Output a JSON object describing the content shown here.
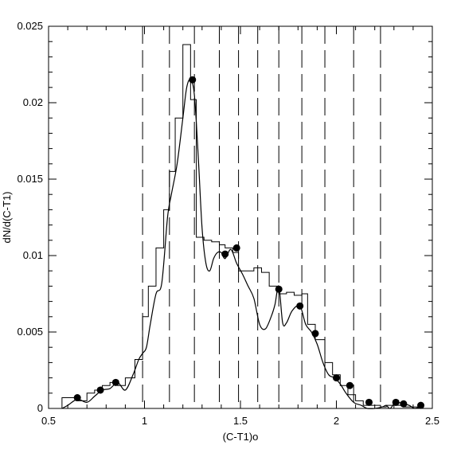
{
  "chart_data": {
    "type": "line",
    "title": "",
    "xlabel": "(C-T1)o",
    "ylabel": "dN/d(C-T1)",
    "xlim": [
      0.5,
      2.5
    ],
    "ylim": [
      0,
      0.025
    ],
    "x_ticks": [
      0.5,
      1,
      1.5,
      2,
      2.5
    ],
    "x_tick_labels": [
      "0.5",
      "1",
      "1.5",
      "2",
      "2.5"
    ],
    "y_ticks": [
      0,
      0.005,
      0.01,
      0.015,
      0.02,
      0.025
    ],
    "y_tick_labels": [
      "0",
      "0.005",
      "0.01",
      "0.015",
      "0.02",
      "0.025"
    ],
    "grid": false,
    "vertical_dashed_lines": [
      0.99,
      1.13,
      1.26,
      1.39,
      1.49,
      1.59,
      1.7,
      1.82,
      1.94,
      2.09,
      2.23
    ],
    "series": [
      {
        "style": "step-histogram",
        "edges": [
          0.57,
          0.65,
          0.7,
          0.74,
          0.78,
          0.82,
          0.86,
          0.9,
          0.95,
          0.99,
          1.02,
          1.06,
          1.1,
          1.13,
          1.16,
          1.2,
          1.24,
          1.27,
          1.31,
          1.35,
          1.39,
          1.42,
          1.46,
          1.49,
          1.53,
          1.57,
          1.61,
          1.65,
          1.7,
          1.74,
          1.78,
          1.82,
          1.85,
          1.89,
          1.94,
          1.98,
          2.02,
          2.06,
          2.1,
          2.14,
          2.18,
          2.23,
          2.26,
          2.31,
          2.35,
          2.4,
          2.45
        ],
        "values": [
          0.0007,
          0.0005,
          0.001,
          0.0012,
          0.0015,
          0.0017,
          0.0015,
          0.002,
          0.0032,
          0.006,
          0.008,
          0.0105,
          0.013,
          0.0155,
          0.019,
          0.0238,
          0.0202,
          0.0112,
          0.011,
          0.0109,
          0.0107,
          0.0105,
          0.0102,
          0.009,
          0.009,
          0.0092,
          0.0089,
          0.008,
          0.0075,
          0.0076,
          0.0074,
          0.0075,
          0.0055,
          0.0045,
          0.003,
          0.0022,
          0.0015,
          0.0009,
          0.0005,
          0.0002,
          0.0002,
          0.0001,
          0.0002,
          0.0002,
          0.0001,
          0.0001
        ]
      },
      {
        "style": "smooth-line",
        "x": [
          0.57,
          0.6,
          0.65,
          0.7,
          0.74,
          0.78,
          0.82,
          0.86,
          0.9,
          0.94,
          0.97,
          0.99,
          1.01,
          1.03,
          1.06,
          1.09,
          1.12,
          1.14,
          1.17,
          1.2,
          1.22,
          1.24,
          1.26,
          1.28,
          1.3,
          1.32,
          1.34,
          1.36,
          1.38,
          1.4,
          1.42,
          1.45,
          1.48,
          1.51,
          1.54,
          1.57,
          1.6,
          1.63,
          1.66,
          1.68,
          1.7,
          1.72,
          1.74,
          1.77,
          1.81,
          1.84,
          1.87,
          1.9,
          1.93,
          1.96,
          1.99,
          2.02,
          2.05,
          2.09,
          2.13,
          2.16,
          2.2,
          2.24,
          2.26,
          2.28,
          2.31,
          2.35,
          2.38,
          2.41,
          2.45
        ],
        "y": [
          0.0,
          0.0002,
          0.0006,
          0.0004,
          0.0008,
          0.0012,
          0.0013,
          0.0017,
          0.0012,
          0.0022,
          0.0032,
          0.0036,
          0.004,
          0.0055,
          0.0075,
          0.0082,
          0.0125,
          0.014,
          0.016,
          0.019,
          0.021,
          0.0215,
          0.0205,
          0.0165,
          0.0118,
          0.0095,
          0.009,
          0.0098,
          0.0102,
          0.0102,
          0.0098,
          0.0104,
          0.0095,
          0.0088,
          0.008,
          0.0072,
          0.0055,
          0.0052,
          0.006,
          0.0068,
          0.008,
          0.0056,
          0.0056,
          0.0064,
          0.0067,
          0.0055,
          0.005,
          0.0042,
          0.003,
          0.0022,
          0.002,
          0.0016,
          0.001,
          0.0004,
          0.0002,
          0.0,
          0.0,
          0.0001,
          0.0002,
          0.0,
          0.0004,
          0.0003,
          0.0002,
          0.0,
          0.0002
        ]
      },
      {
        "style": "filled-markers",
        "x": [
          0.65,
          0.77,
          0.85,
          1.25,
          1.42,
          1.48,
          1.7,
          1.81,
          1.89,
          2.0,
          2.07,
          2.17,
          2.31,
          2.35,
          2.44
        ],
        "y": [
          0.0007,
          0.0012,
          0.0017,
          0.0215,
          0.0101,
          0.0105,
          0.0078,
          0.0067,
          0.0049,
          0.002,
          0.0015,
          0.0004,
          0.0004,
          0.0003,
          0.0002
        ]
      }
    ]
  }
}
